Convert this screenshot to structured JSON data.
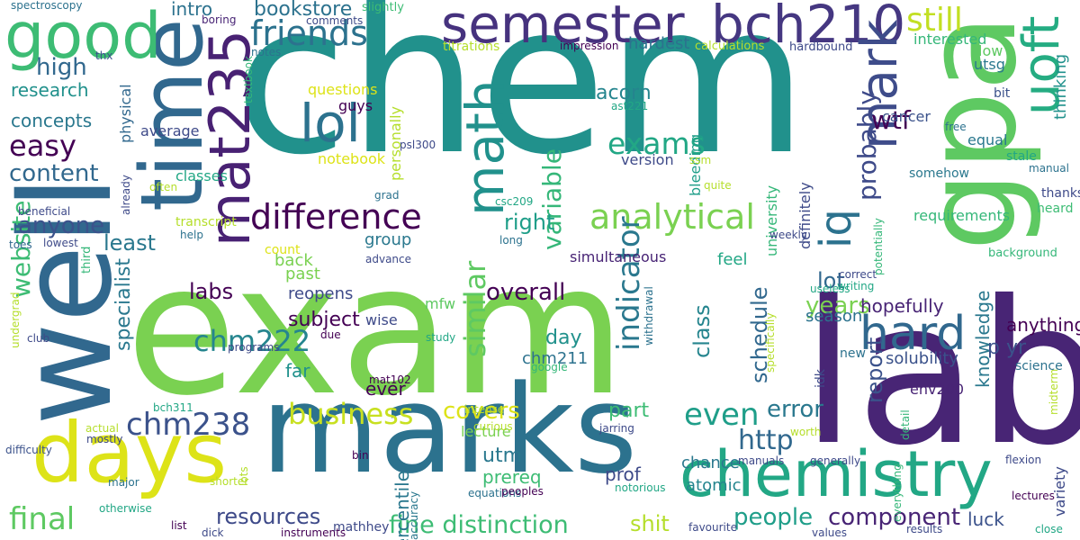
{
  "words": [
    {
      "t": "exam",
      "c": "#7ad151"
    },
    {
      "t": "chem",
      "c": "#21918c"
    },
    {
      "t": "lab",
      "c": "#482575"
    },
    {
      "t": "marks",
      "c": "#2c728e"
    },
    {
      "t": "well",
      "c": "#31688e"
    },
    {
      "t": "gpa",
      "c": "#5ec962"
    },
    {
      "t": "time",
      "c": "#31688e"
    },
    {
      "t": "semester",
      "c": "#46327e"
    },
    {
      "t": "bch210",
      "c": "#453781"
    },
    {
      "t": "days",
      "c": "#dde318"
    },
    {
      "t": "good",
      "c": "#3dbc74"
    },
    {
      "t": "chemistry",
      "c": "#22a785"
    },
    {
      "t": "mat235",
      "c": "#482173"
    },
    {
      "t": "math",
      "c": "#21918c"
    },
    {
      "t": "mark",
      "c": "#3e4c8a"
    },
    {
      "t": "uoft",
      "c": "#25ac82"
    },
    {
      "t": "lol",
      "c": "#2c728e"
    },
    {
      "t": "hard",
      "c": "#31688e"
    },
    {
      "t": "iq",
      "c": "#2c728e"
    },
    {
      "t": "difference",
      "c": "#440154"
    },
    {
      "t": "analytical",
      "c": "#7ad151"
    },
    {
      "t": "friends",
      "c": "#2c728e"
    },
    {
      "t": "still",
      "c": "#c2df23"
    },
    {
      "t": "exams",
      "c": "#22a785"
    },
    {
      "t": "chm238",
      "c": "#3b528b"
    },
    {
      "t": "business",
      "c": "#c8e020"
    },
    {
      "t": "chm222",
      "c": "#25858e"
    },
    {
      "t": "website",
      "c": "#3dbc74"
    },
    {
      "t": "final",
      "c": "#5ec962"
    },
    {
      "t": "variable",
      "c": "#35b779"
    },
    {
      "t": "indicator",
      "c": "#2a788e"
    },
    {
      "t": "probably",
      "c": "#3e4a89"
    },
    {
      "t": "easy",
      "c": "#440154"
    },
    {
      "t": "high",
      "c": "#31688e"
    },
    {
      "t": "content",
      "c": "#31688e"
    },
    {
      "t": "anyone",
      "c": "#3b528b"
    },
    {
      "t": "least",
      "c": "#2a788e"
    },
    {
      "t": "similar",
      "c": "#5ec962"
    },
    {
      "t": "even",
      "c": "#1f9e89"
    },
    {
      "t": "http",
      "c": "#31688e"
    },
    {
      "t": "people",
      "c": "#1f9e89"
    },
    {
      "t": "component",
      "c": "#482475"
    },
    {
      "t": "resources",
      "c": "#3e4a89"
    },
    {
      "t": "fine distinction",
      "c": "#3dbc74"
    },
    {
      "t": "shit",
      "c": "#b5de2b"
    },
    {
      "t": "wtf",
      "c": "#440154"
    },
    {
      "t": "labs",
      "c": "#440154"
    },
    {
      "t": "covers",
      "c": "#dde318"
    },
    {
      "t": "overall",
      "c": "#440154"
    },
    {
      "t": "right",
      "c": "#1f9e89"
    },
    {
      "t": "lot",
      "c": "#31688e"
    },
    {
      "t": "years",
      "c": "#7ad151"
    },
    {
      "t": "report",
      "c": "#3b528b"
    },
    {
      "t": "error",
      "c": "#2a788e"
    },
    {
      "t": "specialist",
      "c": "#2a788e"
    },
    {
      "t": "class",
      "c": "#25858e"
    },
    {
      "t": "schedule",
      "c": "#31688e"
    },
    {
      "t": "bookstore",
      "c": "#2c728e"
    },
    {
      "t": "research",
      "c": "#21918c"
    },
    {
      "t": "concepts",
      "c": "#2a788e"
    },
    {
      "t": "intro",
      "c": "#2c728e"
    },
    {
      "t": "part",
      "c": "#3dbc74"
    },
    {
      "t": "utm",
      "c": "#2a788e"
    },
    {
      "t": "day",
      "c": "#21918c"
    },
    {
      "t": "subject",
      "c": "#440154"
    },
    {
      "t": "hopefully",
      "c": "#482475"
    },
    {
      "t": "season",
      "c": "#2c728e"
    },
    {
      "t": "anything",
      "c": "#440154"
    },
    {
      "t": "p yr",
      "c": "#3b528b"
    },
    {
      "t": "solubility",
      "c": "#3b528b"
    },
    {
      "t": "knowledge",
      "c": "#2a788e"
    },
    {
      "t": "luck",
      "c": "#3b528b"
    },
    {
      "t": "chance",
      "c": "#2a788e"
    },
    {
      "t": "atomic",
      "c": "#25858e"
    },
    {
      "t": "prof",
      "c": "#3e4a89"
    },
    {
      "t": "prereq",
      "c": "#3dbc74"
    },
    {
      "t": "percentile",
      "c": "#2a788e"
    },
    {
      "t": "back",
      "c": "#7ad151"
    },
    {
      "t": "group",
      "c": "#2a788e"
    },
    {
      "t": "far",
      "c": "#21918c"
    },
    {
      "t": "reopens",
      "c": "#3e4a89"
    },
    {
      "t": "past",
      "c": "#7ad151"
    },
    {
      "t": "feel",
      "c": "#22a785"
    },
    {
      "t": "ever",
      "c": "#440154"
    },
    {
      "t": "chm211",
      "c": "#2c728e"
    },
    {
      "t": "wise",
      "c": "#3e4a89"
    },
    {
      "t": "mfw",
      "c": "#5ec962"
    },
    {
      "t": "lecture",
      "c": "#7ad151"
    },
    {
      "t": "simultaneous",
      "c": "#482475"
    },
    {
      "t": "acorn",
      "c": "#25858e"
    },
    {
      "t": "hardest",
      "c": "#2c728e"
    },
    {
      "t": "interested",
      "c": "#35b779"
    },
    {
      "t": "thinking",
      "c": "#21918c"
    },
    {
      "t": "utsg",
      "c": "#2a788e"
    },
    {
      "t": "low",
      "c": "#5ec962"
    },
    {
      "t": "cancer",
      "c": "#3b528b"
    },
    {
      "t": "equal",
      "c": "#2a788e"
    },
    {
      "t": "definitely",
      "c": "#3e4a89"
    },
    {
      "t": "university",
      "c": "#35b779"
    },
    {
      "t": "bleeding",
      "c": "#1f9e89"
    },
    {
      "t": "version",
      "c": "#3e4a89"
    },
    {
      "t": "notebook",
      "c": "#dde318"
    },
    {
      "t": "questions",
      "c": "#dde318"
    },
    {
      "t": "personally",
      "c": "#b5de2b"
    },
    {
      "t": "guys",
      "c": "#440154"
    },
    {
      "t": "physical",
      "c": "#31688e"
    },
    {
      "t": "average",
      "c": "#3e4a89"
    },
    {
      "t": "classes",
      "c": "#22a785"
    },
    {
      "t": "requirements",
      "c": "#35b779"
    },
    {
      "t": "thanks",
      "c": "#3e4a89"
    },
    {
      "t": "heard",
      "c": "#3dbc74"
    },
    {
      "t": "background",
      "c": "#35b779"
    },
    {
      "t": "bit",
      "c": "#3b528b"
    },
    {
      "t": "free",
      "c": "#2c728e"
    },
    {
      "t": "stale",
      "c": "#22a785"
    },
    {
      "t": "manual",
      "c": "#2c728e"
    },
    {
      "t": "somehow",
      "c": "#2a788e"
    },
    {
      "t": "titrations",
      "c": "#b5de2b"
    },
    {
      "t": "impression",
      "c": "#440154"
    },
    {
      "t": "calculations",
      "c": "#b5de2b"
    },
    {
      "t": "hardbound",
      "c": "#3e4a89"
    },
    {
      "t": "ast221",
      "c": "#22a785"
    },
    {
      "t": "slightly",
      "c": "#3dbc74"
    },
    {
      "t": "comments",
      "c": "#3e4a89"
    },
    {
      "t": "boring",
      "c": "#482475"
    },
    {
      "t": "spectroscopy",
      "c": "#2c728e"
    },
    {
      "t": "thx",
      "c": "#3b528b"
    },
    {
      "t": "notes",
      "c": "#2c728e"
    },
    {
      "t": "textbook",
      "c": "#35b779"
    },
    {
      "t": "psl300",
      "c": "#3e4a89"
    },
    {
      "t": "ssm",
      "c": "#b5de2b"
    },
    {
      "t": "quite",
      "c": "#b5de2b"
    },
    {
      "t": "csc209",
      "c": "#22a785"
    },
    {
      "t": "grad",
      "c": "#2c728e"
    },
    {
      "t": "already",
      "c": "#3e4a89"
    },
    {
      "t": "often",
      "c": "#b5de2b"
    },
    {
      "t": "transcript",
      "c": "#b5de2b"
    },
    {
      "t": "help",
      "c": "#2c728e"
    },
    {
      "t": "beneficial",
      "c": "#3e4a89"
    },
    {
      "t": "toes",
      "c": "#31688e"
    },
    {
      "t": "lowest",
      "c": "#3e4a89"
    },
    {
      "t": "third",
      "c": "#35b779"
    },
    {
      "t": "undergrad",
      "c": "#b5de2b"
    },
    {
      "t": "count",
      "c": "#dde318"
    },
    {
      "t": "long",
      "c": "#2c728e"
    },
    {
      "t": "advance",
      "c": "#3e4a89"
    },
    {
      "t": "weekly",
      "c": "#3e4a89"
    },
    {
      "t": "correct",
      "c": "#3e4a89"
    },
    {
      "t": "writing",
      "c": "#22a785"
    },
    {
      "t": "potentially",
      "c": "#35b779"
    },
    {
      "t": "specifically",
      "c": "#b5de2b"
    },
    {
      "t": "useless",
      "c": "#22a785"
    },
    {
      "t": "withdrawal",
      "c": "#2c728e"
    },
    {
      "t": "idk",
      "c": "#3e4a89"
    },
    {
      "t": "new",
      "c": "#2c728e"
    },
    {
      "t": "env200",
      "c": "#482475"
    },
    {
      "t": "science",
      "c": "#2c728e"
    },
    {
      "t": "midterm",
      "c": "#b5de2b"
    },
    {
      "t": "club",
      "c": "#3e4a89"
    },
    {
      "t": "due",
      "c": "#440154"
    },
    {
      "t": "study",
      "c": "#22a785"
    },
    {
      "t": "mat102",
      "c": "#440154"
    },
    {
      "t": "google",
      "c": "#35b779"
    },
    {
      "t": "programs",
      "c": "#3e4a89"
    },
    {
      "t": "intense",
      "c": "#b5de2b"
    },
    {
      "t": "bch311",
      "c": "#22a785"
    },
    {
      "t": "actual",
      "c": "#b5de2b"
    },
    {
      "t": "mostly",
      "c": "#3e4a89"
    },
    {
      "t": "jarring",
      "c": "#3e4a89"
    },
    {
      "t": "curious",
      "c": "#b5de2b"
    },
    {
      "t": "worth",
      "c": "#b5de2b"
    },
    {
      "t": "detail",
      "c": "#35b779"
    },
    {
      "t": "everything",
      "c": "#35b779"
    },
    {
      "t": "flexion",
      "c": "#3e4a89"
    },
    {
      "t": "variety",
      "c": "#3e4a89"
    },
    {
      "t": "difficulty",
      "c": "#3b528b"
    },
    {
      "t": "bin",
      "c": "#440154"
    },
    {
      "t": "manuals",
      "c": "#3e4a89"
    },
    {
      "t": "generally",
      "c": "#3e4a89"
    },
    {
      "t": "lectures",
      "c": "#440154"
    },
    {
      "t": "lots",
      "c": "#b5de2b"
    },
    {
      "t": "accuracy",
      "c": "#2a788e"
    },
    {
      "t": "equations",
      "c": "#2c728e"
    },
    {
      "t": "notorious",
      "c": "#22a785"
    },
    {
      "t": "peoples",
      "c": "#440154"
    },
    {
      "t": "major",
      "c": "#2c728e"
    },
    {
      "t": "shorter",
      "c": "#b5de2b"
    },
    {
      "t": "otherwise",
      "c": "#22a785"
    },
    {
      "t": "list",
      "c": "#440154"
    },
    {
      "t": "mathhey",
      "c": "#3e4a89"
    },
    {
      "t": "dick",
      "c": "#3e4a89"
    },
    {
      "t": "instruments",
      "c": "#440154"
    },
    {
      "t": "favourite",
      "c": "#3e4a89"
    },
    {
      "t": "values",
      "c": "#3e4a89"
    },
    {
      "t": "results",
      "c": "#3e4a89"
    },
    {
      "t": "close",
      "c": "#22a785"
    },
    {
      "t": "se",
      "c": "#3e4a89"
    }
  ]
}
